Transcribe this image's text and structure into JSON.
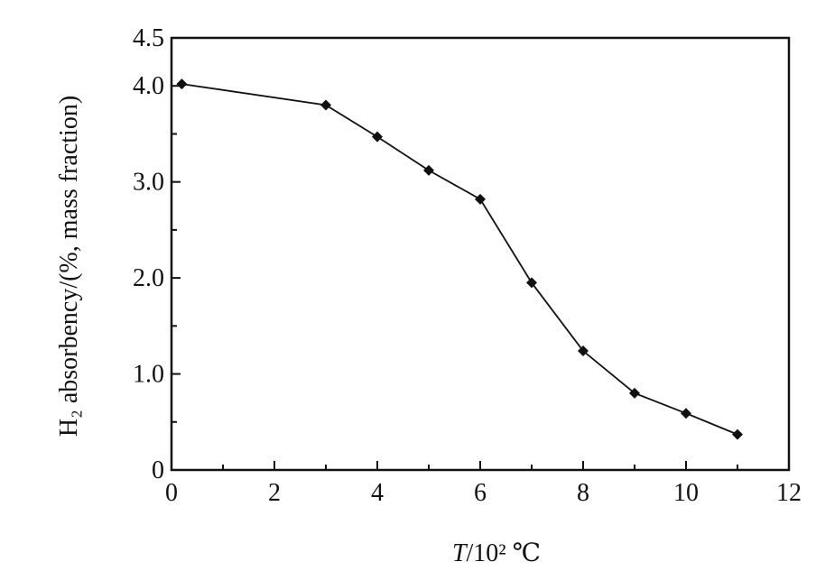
{
  "chart_data": {
    "type": "line",
    "title": "",
    "xlabel_prefix": "T",
    "xlabel_rest": "/10² ℃",
    "ylabel": "H₂ absorbency/(%, mass fraction)",
    "xlim": [
      0,
      12
    ],
    "ylim": [
      0,
      4.5
    ],
    "x_ticks": [
      0,
      2,
      4,
      6,
      8,
      10,
      12
    ],
    "x_tick_labels": [
      "0",
      "2",
      "4",
      "6",
      "8",
      "10",
      "12"
    ],
    "y_ticks": [
      0,
      1.0,
      2.0,
      3.0,
      4.0,
      4.5
    ],
    "y_tick_labels": [
      "0",
      "1.0",
      "2.0",
      "3.0",
      "4.0",
      "4.5"
    ],
    "grid": false,
    "marker": "diamond",
    "series": [
      {
        "x": [
          0.2,
          3,
          4,
          5,
          6,
          7,
          8,
          9,
          10,
          11
        ],
        "y": [
          4.02,
          3.8,
          3.47,
          3.12,
          2.82,
          1.95,
          1.24,
          0.8,
          0.59,
          0.37
        ]
      }
    ]
  }
}
